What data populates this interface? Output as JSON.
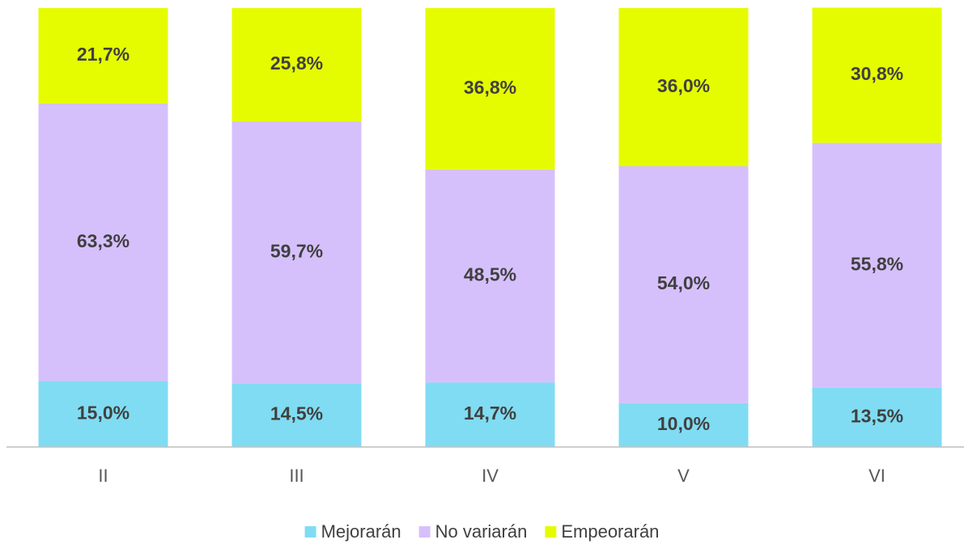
{
  "chart_data": {
    "type": "stacked_bar",
    "categories": [
      "II",
      "III",
      "IV",
      "V",
      "VI"
    ],
    "ylim": [
      0,
      100
    ],
    "series": [
      {
        "name": "Mejorarán",
        "color": "#80dcf2",
        "values": [
          15.0,
          14.5,
          14.7,
          10.0,
          13.5
        ],
        "value_labels": [
          "15,0%",
          "14,5%",
          "14,7%",
          "10,0%",
          "13,5%"
        ]
      },
      {
        "name": "No variarán",
        "color": "#d6c0fc",
        "values": [
          63.3,
          59.7,
          48.5,
          54.0,
          55.8
        ],
        "value_labels": [
          "63,3%",
          "59,7%",
          "48,5%",
          "54,0%",
          "55,8%"
        ]
      },
      {
        "name": "Empeorarán",
        "color": "#e5fc00",
        "values": [
          21.7,
          25.8,
          36.8,
          36.0,
          30.8
        ],
        "value_labels": [
          "21,7%",
          "25,8%",
          "36,8%",
          "36,0%",
          "30,8%"
        ]
      }
    ],
    "legend": "bottom"
  }
}
